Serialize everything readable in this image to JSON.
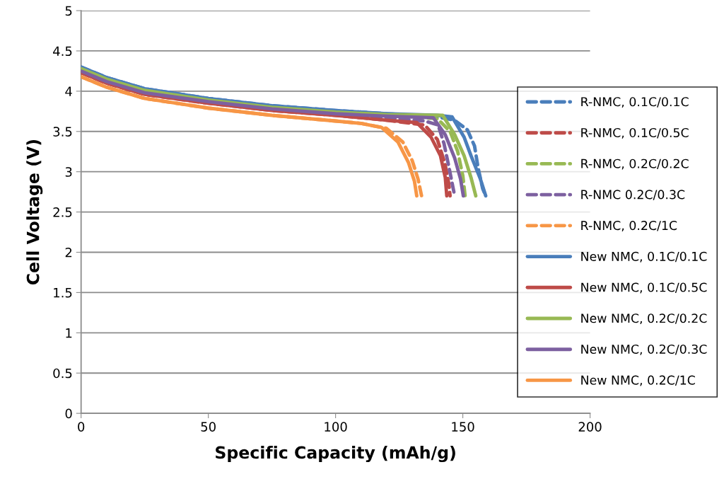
{
  "chart_data": {
    "type": "line",
    "xlabel": "Specific Capacity (mAh/g)",
    "ylabel": "Cell Voltage (V)",
    "xlim": [
      0,
      200
    ],
    "xticks": [
      0,
      50,
      100,
      150,
      200
    ],
    "ylim": [
      0,
      5
    ],
    "yticks": [
      0,
      0.5,
      1,
      1.5,
      2,
      2.5,
      3,
      3.5,
      4,
      4.5,
      5
    ],
    "grid": "y",
    "legend": "right",
    "marker": "none",
    "series": [
      {
        "name": "R-NMC, 0.1C/0.1C",
        "color": "#4a7ebb",
        "line_style": "dashed",
        "x": [
          0,
          10,
          25,
          50,
          75,
          100,
          120,
          140,
          146.7,
          151.8,
          154.6,
          156,
          157.8,
          159
        ],
        "values": [
          4.3,
          4.17,
          4.03,
          3.91,
          3.82,
          3.76,
          3.72,
          3.68,
          3.64,
          3.52,
          3.32,
          3.05,
          2.79,
          2.7
        ]
      },
      {
        "name": "R-NMC, 0.1C/0.5C",
        "color": "#be4b48",
        "line_style": "dashed",
        "x": [
          0,
          10,
          25,
          50,
          75,
          100,
          120,
          135,
          140,
          143,
          144.5,
          145
        ],
        "values": [
          4.23,
          4.1,
          3.96,
          3.85,
          3.76,
          3.7,
          3.64,
          3.58,
          3.4,
          3.1,
          2.85,
          2.7
        ]
      },
      {
        "name": "R-NMC, 0.2C/0.2C",
        "color": "#98b954",
        "line_style": "dashed",
        "x": [
          0,
          10,
          25,
          50,
          75,
          100,
          120,
          140,
          145,
          148,
          150,
          150.9
        ],
        "values": [
          4.28,
          4.15,
          4.01,
          3.89,
          3.8,
          3.74,
          3.7,
          3.66,
          3.5,
          3.25,
          2.95,
          2.7
        ]
      },
      {
        "name": "R-NMC 0.2C/0.3C",
        "color": "#7d60a0",
        "line_style": "dashed",
        "x": [
          0,
          10,
          25,
          50,
          75,
          100,
          120,
          135,
          140.3,
          142.6,
          144.4,
          146.8
        ],
        "values": [
          4.25,
          4.12,
          3.98,
          3.87,
          3.78,
          3.72,
          3.67,
          3.63,
          3.58,
          3.35,
          3.08,
          2.7
        ]
      },
      {
        "name": "R-NMC, 0.2C/1C",
        "color": "#f79646",
        "line_style": "dashed",
        "x": [
          0,
          10,
          25,
          50,
          75,
          100,
          110,
          119.9,
          126.4,
          130.1,
          132.4,
          133.8
        ],
        "values": [
          4.18,
          4.05,
          3.91,
          3.79,
          3.7,
          3.63,
          3.6,
          3.54,
          3.37,
          3.14,
          2.91,
          2.7
        ]
      },
      {
        "name": "New NMC, 0.1C/0.1C",
        "color": "#4a7ebb",
        "line_style": "solid",
        "x": [
          0,
          10,
          25,
          50,
          75,
          100,
          120,
          140,
          145.8,
          150.5,
          153.2,
          156.9,
          159
        ],
        "values": [
          4.3,
          4.17,
          4.03,
          3.91,
          3.82,
          3.76,
          3.72,
          3.7,
          3.68,
          3.43,
          3.2,
          2.91,
          2.7
        ]
      },
      {
        "name": "New NMC, 0.1C/0.5C",
        "color": "#be4b48",
        "line_style": "solid",
        "x": [
          0,
          10,
          25,
          50,
          75,
          100,
          120,
          131.9,
          137.5,
          141.2,
          143.1,
          143.7
        ],
        "values": [
          4.23,
          4.1,
          3.96,
          3.85,
          3.76,
          3.7,
          3.64,
          3.61,
          3.43,
          3.2,
          2.93,
          2.7
        ]
      },
      {
        "name": "New NMC, 0.2C/0.2C",
        "color": "#98b954",
        "line_style": "solid",
        "x": [
          0,
          10,
          25,
          50,
          75,
          100,
          120,
          142.1,
          146.8,
          150.5,
          153.2,
          155.1
        ],
        "values": [
          4.28,
          4.15,
          4.01,
          3.89,
          3.8,
          3.74,
          3.71,
          3.7,
          3.46,
          3.2,
          2.93,
          2.7
        ]
      },
      {
        "name": "New NMC, 0.2C/0.3C",
        "color": "#7d60a0",
        "line_style": "solid",
        "x": [
          0,
          10,
          25,
          50,
          75,
          100,
          120,
          138.4,
          143.1,
          146.8,
          149.1,
          150.2
        ],
        "values": [
          4.25,
          4.12,
          3.98,
          3.87,
          3.78,
          3.72,
          3.69,
          3.67,
          3.46,
          3.17,
          2.91,
          2.7
        ]
      },
      {
        "name": "New NMC, 0.2C/1C",
        "color": "#f79646",
        "line_style": "solid",
        "x": [
          0,
          10,
          25,
          50,
          75,
          100,
          110,
          118.1,
          124.5,
          128.7,
          131,
          131.9
        ],
        "values": [
          4.18,
          4.05,
          3.91,
          3.79,
          3.7,
          3.63,
          3.6,
          3.55,
          3.37,
          3.11,
          2.88,
          2.7
        ]
      }
    ]
  }
}
